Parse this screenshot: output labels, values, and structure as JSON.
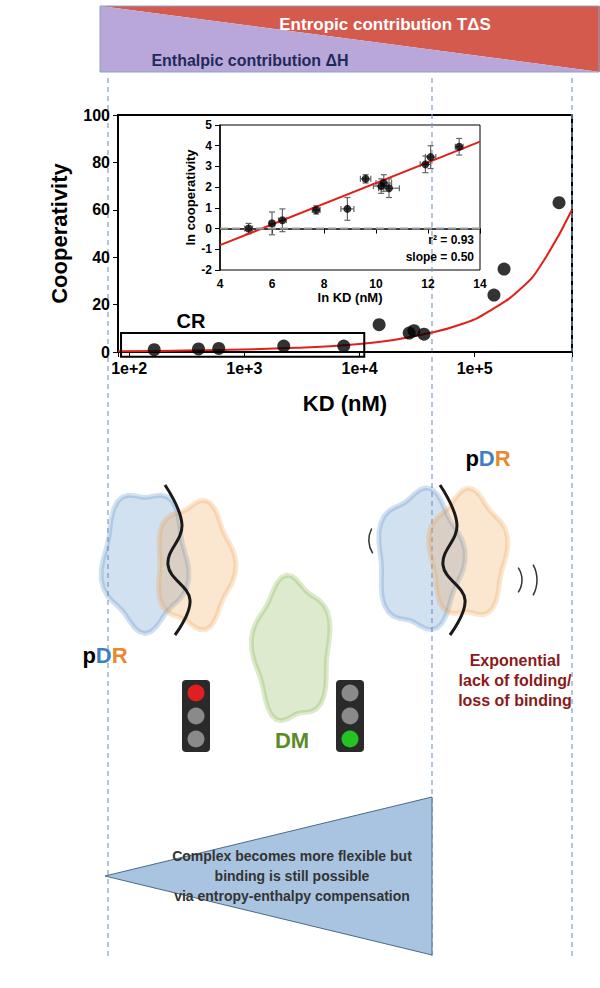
{
  "header": {
    "entropic": "Entropic contribution TΔS",
    "enthalpic": "Enthalpic contribution ΔH"
  },
  "chart_data": [
    {
      "type": "scatter",
      "x_label": "KD (nM)",
      "y_label": "Cooperativity",
      "log": "x",
      "grid": false,
      "xlim": [
        80,
        700000
      ],
      "xticks": [
        {
          "value": 100,
          "label": "1e+2"
        },
        {
          "value": 1000,
          "label": "1e+3"
        },
        {
          "value": 10000,
          "label": "1e+4"
        },
        {
          "value": 100000,
          "label": "1e+5"
        }
      ],
      "ylim": [
        0,
        100
      ],
      "yticks": [
        0,
        20,
        40,
        60,
        80,
        100
      ],
      "series": [
        {
          "type": "scatter",
          "color": "#000000",
          "marker": "circle",
          "x": [
            165,
            400,
            600,
            2200,
            7300,
            14800,
            27000,
            29700,
            36300,
            147000,
            180000,
            540000
          ],
          "values": [
            1,
            1.3,
            1.5,
            2.5,
            2.5,
            11.5,
            8,
            9,
            7.5,
            24,
            35,
            63
          ]
        },
        {
          "type": "line",
          "color": "#e0201b",
          "marker": "none",
          "line_style": "solid",
          "x": [
            80,
            400,
            2800,
            13500,
            36000,
            80000,
            142000,
            255000,
            380000,
            700000
          ],
          "values": [
            0.3,
            0.7,
            1.8,
            4,
            7.5,
            12,
            18,
            27,
            37,
            60
          ]
        }
      ],
      "annotations": [
        {
          "text": "CR",
          "x": [
            85,
            11000
          ],
          "y": [
            -2,
            8
          ]
        }
      ]
    },
    {
      "type": "scatter",
      "x_label": "ln KD (nM)",
      "y_label": "ln cooperativity",
      "grid": false,
      "xlim": [
        4,
        14
      ],
      "xticks": [
        4,
        6,
        8,
        10,
        12,
        14
      ],
      "ylim": [
        -2,
        5
      ],
      "yticks": [
        -2,
        -1,
        0,
        1,
        2,
        3,
        4,
        5
      ],
      "series": [
        {
          "type": "scatter",
          "color": "#000000",
          "marker": "circle",
          "x": [
            5.1,
            6.0,
            6.4,
            7.7,
            8.9,
            9.6,
            10.2,
            10.3,
            10.5,
            11.9,
            12.1,
            13.2
          ],
          "values": [
            0.0,
            0.25,
            0.4,
            0.9,
            0.95,
            2.4,
            2.05,
            2.2,
            1.95,
            3.1,
            3.45,
            3.95
          ],
          "x_error": [
            0.15,
            0.1,
            0.15,
            0.15,
            0.25,
            0.2,
            0.3,
            0.3,
            0.4,
            0.2,
            0.2,
            0.15
          ],
          "y_error": [
            0.25,
            0.55,
            0.55,
            0.2,
            0.55,
            0.2,
            0.35,
            0.4,
            0.45,
            0.4,
            0.55,
            0.4
          ]
        },
        {
          "type": "line",
          "color": "#e0201b",
          "marker": "none",
          "line_style": "solid",
          "x": [
            4,
            14
          ],
          "values": [
            -0.8,
            4.2
          ]
        },
        {
          "type": "line",
          "color": "#999999",
          "marker": "none",
          "line_style": "dashed",
          "x": [
            4,
            14
          ],
          "values": [
            0,
            0
          ]
        }
      ],
      "annotations": [
        "r² = 0.93",
        "slope = 0.50"
      ]
    }
  ],
  "diagram": {
    "complex_label": "pDR",
    "partner_label": "DM",
    "loss_note": [
      "Exponential",
      "lack of folding/",
      "loss of binding"
    ],
    "compensation_note": [
      "Complex becomes more flexible but",
      "binding is still possible",
      "via entropy-enthalpy compensation"
    ]
  }
}
